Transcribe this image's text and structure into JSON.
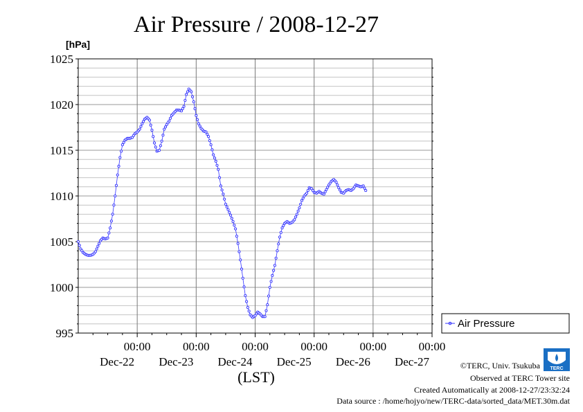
{
  "chart_data": {
    "type": "line",
    "title": "Air Pressure / 2008-12-27",
    "ylabel": "[hPa]",
    "xlabel": "(LST)",
    "ylim": [
      995,
      1025
    ],
    "yticks": [
      "995",
      "1000",
      "1005",
      "1010",
      "1015",
      "1020",
      "1025"
    ],
    "xticks": [
      {
        "time": "00:00",
        "date": "Dec-22"
      },
      {
        "time": "00:00",
        "date": "Dec-23"
      },
      {
        "time": "00:00",
        "date": "Dec-24"
      },
      {
        "time": "00:00",
        "date": "Dec-25"
      },
      {
        "time": "00:00",
        "date": "Dec-26"
      },
      {
        "time": "00:00",
        "date": "Dec-27"
      }
    ],
    "x_unit": "hours since 2008-12-21 00:00 LST",
    "xlim": [
      0,
      144
    ],
    "grid": true,
    "legend_position": "right",
    "series": [
      {
        "name": "Air Pressure",
        "color": "#3333ff",
        "marker": "open-circle",
        "points": [
          [
            0,
            1005.0
          ],
          [
            1,
            1004.2
          ],
          [
            2,
            1003.8
          ],
          [
            3,
            1003.6
          ],
          [
            4,
            1003.5
          ],
          [
            5,
            1003.5
          ],
          [
            6,
            1003.6
          ],
          [
            7,
            1003.9
          ],
          [
            8,
            1004.5
          ],
          [
            9,
            1005.1
          ],
          [
            10,
            1005.4
          ],
          [
            11,
            1005.3
          ],
          [
            12,
            1005.4
          ],
          [
            13,
            1006.5
          ],
          [
            14,
            1008.0
          ],
          [
            15,
            1010.0
          ],
          [
            16,
            1012.3
          ],
          [
            17,
            1014.2
          ],
          [
            18,
            1015.6
          ],
          [
            19,
            1016.1
          ],
          [
            20,
            1016.3
          ],
          [
            21,
            1016.3
          ],
          [
            22,
            1016.4
          ],
          [
            23,
            1016.8
          ],
          [
            24,
            1017.0
          ],
          [
            25,
            1017.3
          ],
          [
            26,
            1017.9
          ],
          [
            27,
            1018.4
          ],
          [
            28,
            1018.6
          ],
          [
            29,
            1018.3
          ],
          [
            30,
            1017.2
          ],
          [
            31,
            1015.8
          ],
          [
            32,
            1014.9
          ],
          [
            33,
            1015.0
          ],
          [
            34,
            1016.0
          ],
          [
            35,
            1017.3
          ],
          [
            36,
            1017.8
          ],
          [
            37,
            1018.2
          ],
          [
            38,
            1018.8
          ],
          [
            39,
            1019.1
          ],
          [
            40,
            1019.4
          ],
          [
            41,
            1019.4
          ],
          [
            42,
            1019.3
          ],
          [
            43,
            1019.8
          ],
          [
            44,
            1021.1
          ],
          [
            45,
            1021.7
          ],
          [
            46,
            1021.4
          ],
          [
            47,
            1020.3
          ],
          [
            48,
            1018.8
          ],
          [
            49,
            1017.9
          ],
          [
            50,
            1017.4
          ],
          [
            51,
            1017.1
          ],
          [
            52,
            1017.0
          ],
          [
            53,
            1016.5
          ],
          [
            54,
            1015.6
          ],
          [
            55,
            1014.5
          ],
          [
            56,
            1013.8
          ],
          [
            57,
            1012.9
          ],
          [
            58,
            1011.1
          ],
          [
            59,
            1010.2
          ],
          [
            60,
            1009.1
          ],
          [
            61,
            1008.5
          ],
          [
            62,
            1007.9
          ],
          [
            63,
            1007.2
          ],
          [
            64,
            1006.4
          ],
          [
            65,
            1004.8
          ],
          [
            66,
            1003.0
          ],
          [
            67,
            1001.0
          ],
          [
            68,
            999.1
          ],
          [
            69,
            997.8
          ],
          [
            70,
            997.0
          ],
          [
            71,
            996.7
          ],
          [
            72,
            996.9
          ],
          [
            73,
            997.3
          ],
          [
            74,
            997.1
          ],
          [
            75,
            996.8
          ],
          [
            76,
            996.8
          ],
          [
            77,
            998.1
          ],
          [
            78,
            1000.0
          ],
          [
            79,
            1001.3
          ],
          [
            80,
            1002.4
          ],
          [
            81,
            1004.0
          ],
          [
            82,
            1005.5
          ],
          [
            83,
            1006.5
          ],
          [
            84,
            1007.0
          ],
          [
            85,
            1007.2
          ],
          [
            86,
            1007.0
          ],
          [
            87,
            1007.1
          ],
          [
            88,
            1007.4
          ],
          [
            89,
            1008.0
          ],
          [
            90,
            1008.7
          ],
          [
            91,
            1009.5
          ],
          [
            92,
            1010.0
          ],
          [
            93,
            1010.3
          ],
          [
            94,
            1010.9
          ],
          [
            95,
            1010.8
          ],
          [
            96,
            1010.4
          ],
          [
            97,
            1010.3
          ],
          [
            98,
            1010.5
          ],
          [
            99,
            1010.3
          ],
          [
            100,
            1010.2
          ],
          [
            101,
            1010.7
          ],
          [
            102,
            1011.2
          ],
          [
            103,
            1011.6
          ],
          [
            104,
            1011.8
          ],
          [
            105,
            1011.5
          ],
          [
            106,
            1010.9
          ],
          [
            107,
            1010.4
          ],
          [
            108,
            1010.3
          ],
          [
            109,
            1010.6
          ],
          [
            110,
            1010.7
          ],
          [
            111,
            1010.6
          ],
          [
            112,
            1010.8
          ],
          [
            113,
            1011.2
          ],
          [
            114,
            1011.1
          ],
          [
            115,
            1011.0
          ],
          [
            116,
            1011.1
          ],
          [
            117,
            1010.6
          ]
        ]
      }
    ]
  },
  "legend": {
    "label": "Air Pressure"
  },
  "logo": {
    "text": "TERC"
  },
  "footer": {
    "copyright": "©TERC, Univ. Tsukuba",
    "observed": "Observed at TERC Tower site",
    "created": "Created Automatically at 2008-12-27/23:32:24",
    "source": "Data source : /home/hojyo/new/TERC-data/sorted_data/MET.30m.dat"
  }
}
